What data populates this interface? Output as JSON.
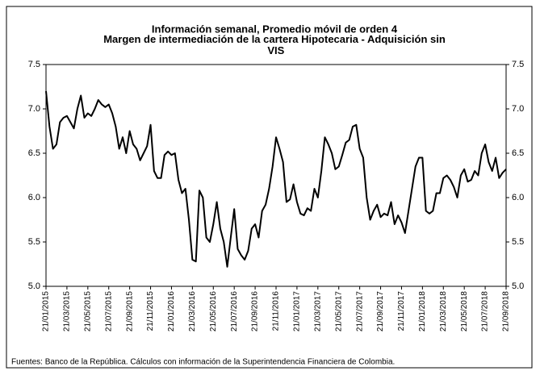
{
  "chart_data": {
    "type": "line",
    "title": "Información semanal, Promedio móvil de orden 4",
    "subtitle": "Margen de intermediación de la cartera  Hipotecaria - Adquisición sin VIS",
    "note": "Fuentes: Banco de la República. Cálculos con información de la Superintendencia Financiera de Colombia.",
    "categories": [
      "21/01/2015",
      null,
      null,
      null,
      null,
      null,
      "21/03/2015",
      null,
      null,
      null,
      null,
      null,
      "21/05/2015",
      null,
      null,
      null,
      null,
      null,
      "21/07/2015",
      null,
      null,
      null,
      null,
      null,
      "21/09/2015",
      null,
      null,
      null,
      null,
      null,
      "21/11/2015",
      null,
      null,
      null,
      null,
      null,
      "21/01/2016",
      null,
      null,
      null,
      null,
      null,
      "21/03/2016",
      null,
      null,
      null,
      null,
      null,
      "21/05/2016",
      null,
      null,
      null,
      null,
      null,
      "21/07/2016",
      null,
      null,
      null,
      null,
      null,
      "21/09/2016",
      null,
      null,
      null,
      null,
      null,
      "21/11/2016",
      null,
      null,
      null,
      null,
      null,
      "21/01/2017",
      null,
      null,
      null,
      null,
      null,
      "21/03/2017",
      null,
      null,
      null,
      null,
      null,
      "21/05/2017",
      null,
      null,
      null,
      null,
      null,
      "21/07/2017",
      null,
      null,
      null,
      null,
      null,
      "21/09/2017",
      null,
      null,
      null,
      null,
      null,
      "21/11/2017",
      null,
      null,
      null,
      null,
      null,
      "21/01/2018",
      null,
      null,
      null,
      null,
      null,
      "21/03/2018",
      null,
      null,
      null,
      null,
      null,
      "21/05/2018",
      null,
      null,
      null,
      null,
      null,
      "21/07/2018",
      null,
      null,
      null,
      null,
      null,
      "21/09/2018"
    ],
    "series": [
      {
        "color": "#000000",
        "values": [
          7.2,
          6.8,
          6.55,
          6.6,
          6.85,
          6.9,
          6.92,
          6.85,
          6.78,
          7.0,
          7.15,
          6.9,
          6.95,
          6.92,
          7.0,
          7.1,
          7.05,
          7.02,
          7.05,
          6.95,
          6.8,
          6.55,
          6.68,
          6.5,
          6.75,
          6.6,
          6.55,
          6.42,
          6.5,
          6.58,
          6.82,
          6.3,
          6.22,
          6.22,
          6.48,
          6.52,
          6.48,
          6.5,
          6.2,
          6.05,
          6.1,
          5.75,
          5.3,
          5.28,
          6.08,
          6.0,
          5.55,
          5.5,
          5.7,
          5.95,
          5.65,
          5.5,
          5.22,
          5.55,
          5.87,
          5.42,
          5.35,
          5.3,
          5.4,
          5.65,
          5.7,
          5.55,
          5.85,
          5.92,
          6.1,
          6.35,
          6.68,
          6.55,
          6.4,
          5.95,
          5.98,
          6.15,
          5.95,
          5.82,
          5.8,
          5.88,
          5.85,
          6.1,
          6.0,
          6.3,
          6.68,
          6.6,
          6.5,
          6.32,
          6.35,
          6.48,
          6.62,
          6.65,
          6.8,
          6.82,
          6.55,
          6.45,
          6.0,
          5.75,
          5.85,
          5.92,
          5.78,
          5.82,
          5.8,
          5.95,
          5.7,
          5.8,
          5.72,
          5.6,
          5.85,
          6.1,
          6.35,
          6.45,
          6.45,
          5.85,
          5.82,
          5.85,
          6.05,
          6.05,
          6.22,
          6.25,
          6.2,
          6.12,
          6.0,
          6.25,
          6.32,
          6.18,
          6.2,
          6.3,
          6.25,
          6.5,
          6.6,
          6.4,
          6.3,
          6.45,
          6.22,
          6.28,
          6.32
        ]
      }
    ],
    "ylim": [
      5,
      7.5
    ],
    "yticks": [
      {
        "value": 5,
        "label": "5.0"
      },
      5.5,
      {
        "value": 6,
        "label": "6.0"
      },
      6.5,
      {
        "value": 7,
        "label": "7.0"
      },
      7.5
    ],
    "y2lim": [
      5,
      7.5
    ],
    "y2ticks": [
      {
        "value": 5,
        "label": "5.0"
      },
      5.5,
      {
        "value": 6,
        "label": "6.0"
      },
      6.5,
      {
        "value": 7,
        "label": "7.0"
      },
      7.5
    ]
  }
}
